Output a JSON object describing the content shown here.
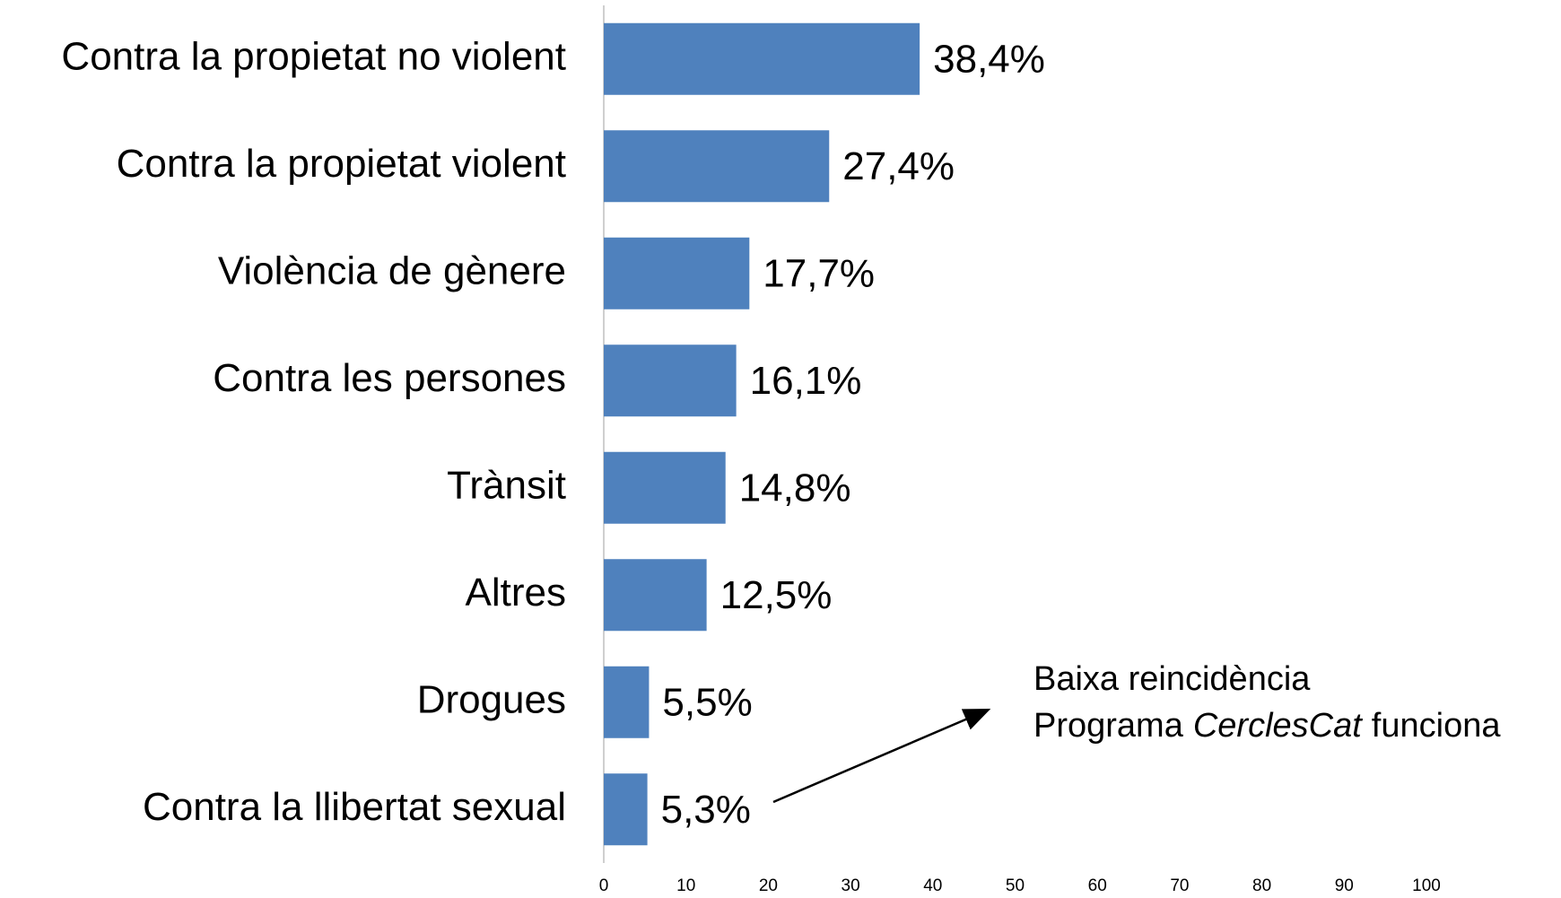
{
  "chart_data": {
    "type": "bar",
    "orientation": "horizontal",
    "categories": [
      "Contra la propietat no violent",
      "Contra la propietat violent",
      "Violència de gènere",
      "Contra les persones",
      "Trànsit",
      "Altres",
      "Drogues",
      "Contra la llibertat sexual"
    ],
    "values": [
      38.4,
      27.4,
      17.7,
      16.1,
      14.8,
      12.5,
      5.5,
      5.3
    ],
    "value_labels": [
      "38,4%",
      "27,4%",
      "17,7%",
      "16,1%",
      "14,8%",
      "12,5%",
      "5,5%",
      "5,3%"
    ],
    "color": "#4f81bd",
    "xlim": [
      0,
      100
    ],
    "xticks": [
      0,
      10,
      20,
      30,
      40,
      50,
      60,
      70,
      80,
      90,
      100
    ],
    "annotation": {
      "line1": "Baixa reincidència",
      "line2": [
        {
          "text": "Programa",
          "italic": false
        },
        {
          "text": "CerclesCat",
          "italic": true
        },
        {
          "text": "funciona",
          "italic": false
        }
      ]
    }
  }
}
